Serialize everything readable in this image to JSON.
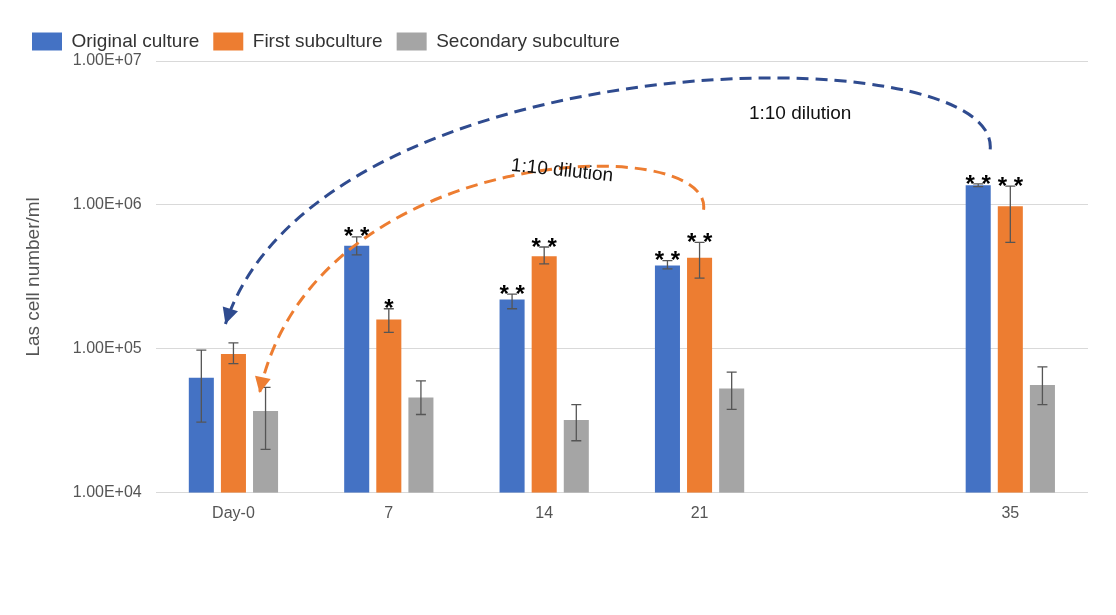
{
  "chart_data": {
    "type": "bar",
    "ylabel": "Las cell number/ml",
    "categories": [
      "Day-0",
      "7",
      "14",
      "21",
      null,
      "35"
    ],
    "series": [
      {
        "name": "Original culture",
        "color": "#4472c4",
        "value_labels": [
          null,
          "* *",
          "* *",
          "* *",
          null,
          "* *"
        ],
        "values": [
          63000,
          520000,
          220000,
          380000,
          null,
          1370000
        ],
        "errors": [
          [
            31000,
            98000
          ],
          [
            450000,
            600000
          ],
          [
            190000,
            240000
          ],
          [
            360000,
            410000
          ],
          null,
          [
            1340000,
            1400000
          ]
        ]
      },
      {
        "name": "First subculture",
        "color": "#ed7d31",
        "value_labels": [
          null,
          "*",
          "* *",
          "* *",
          null,
          "* *"
        ],
        "values": [
          92000,
          160000,
          440000,
          430000,
          null,
          980000
        ],
        "errors": [
          [
            79000,
            110000
          ],
          [
            130000,
            190000
          ],
          [
            390000,
            510000
          ],
          [
            310000,
            550000
          ],
          null,
          [
            550000,
            1350000
          ]
        ]
      },
      {
        "name": "Secondary subculture",
        "color": "#a5a5a5",
        "values": [
          37000,
          46000,
          32000,
          53000,
          null,
          56000
        ],
        "errors": [
          [
            20000,
            54000
          ],
          [
            35000,
            60000
          ],
          [
            23000,
            41000
          ],
          [
            38000,
            69000
          ],
          null,
          [
            41000,
            75000
          ]
        ]
      }
    ],
    "log": "y",
    "ylim": [
      10000,
      10000000
    ],
    "yticks": [
      {
        "value": 10000,
        "label": "1.00E+04"
      },
      {
        "value": 100000,
        "label": "1.00E+05"
      },
      {
        "value": 1000000,
        "label": "1.00E+06"
      },
      {
        "value": 10000000,
        "label": "1.00E+07"
      }
    ],
    "grid": "y",
    "legend": "top left",
    "annotations": [
      "1:10 dilution",
      "1:10 dilution"
    ]
  }
}
